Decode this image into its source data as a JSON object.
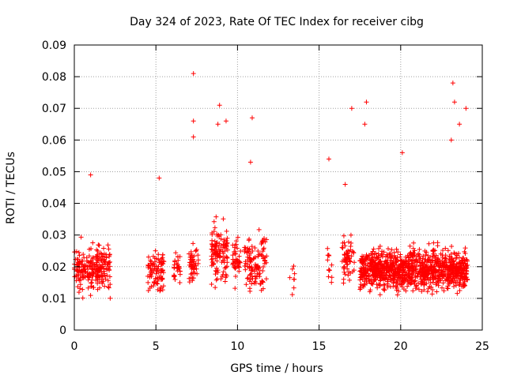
{
  "chart_data": {
    "type": "scatter",
    "title": "Day 324 of 2023, Rate Of TEC Index for receiver cibg",
    "xlabel": "GPS time / hours",
    "ylabel": "ROTI / TECUs",
    "xlim": [
      0,
      25
    ],
    "ylim": [
      0,
      0.09
    ],
    "grid": true,
    "marker": "+",
    "color": "#ff0000",
    "xticks": [
      0,
      5,
      10,
      15,
      20,
      25
    ],
    "yticks": [
      0,
      0.01,
      0.02,
      0.03,
      0.04,
      0.05,
      0.06,
      0.07,
      0.08,
      0.09
    ],
    "xtick_labels": [
      "0",
      "5",
      "10",
      "15",
      "20",
      "25"
    ],
    "ytick_labels": [
      "0",
      "0.01",
      "0.02",
      "0.03",
      "0.04",
      "0.05",
      "0.06",
      "0.07",
      "0.08",
      "0.09"
    ],
    "clusters": [
      {
        "x_range": [
          0.0,
          2.2
        ],
        "y_center": 0.019,
        "y_spread": 0.007,
        "count": 240
      },
      {
        "x_range": [
          4.5,
          5.5
        ],
        "y_center": 0.019,
        "y_spread": 0.006,
        "count": 90
      },
      {
        "x_range": [
          6.1,
          6.5
        ],
        "y_center": 0.02,
        "y_spread": 0.005,
        "count": 30
      },
      {
        "x_range": [
          7.0,
          7.6
        ],
        "y_center": 0.021,
        "y_spread": 0.006,
        "count": 50
      },
      {
        "x_range": [
          8.4,
          9.4
        ],
        "y_center": 0.024,
        "y_spread": 0.008,
        "count": 120
      },
      {
        "x_range": [
          9.7,
          10.2
        ],
        "y_center": 0.022,
        "y_spread": 0.007,
        "count": 40
      },
      {
        "x_range": [
          10.4,
          11.8
        ],
        "y_center": 0.022,
        "y_spread": 0.008,
        "count": 120
      },
      {
        "x_range": [
          13.2,
          13.5
        ],
        "y_center": 0.017,
        "y_spread": 0.006,
        "count": 8
      },
      {
        "x_range": [
          15.5,
          15.8
        ],
        "y_center": 0.02,
        "y_spread": 0.006,
        "count": 12
      },
      {
        "x_range": [
          16.4,
          17.2
        ],
        "y_center": 0.022,
        "y_spread": 0.008,
        "count": 60
      },
      {
        "x_range": [
          17.5,
          24.1
        ],
        "y_center": 0.019,
        "y_spread": 0.006,
        "count": 1100
      }
    ],
    "outliers": [
      {
        "x": 7.3,
        "y": 0.081
      },
      {
        "x": 7.3,
        "y": 0.066
      },
      {
        "x": 7.3,
        "y": 0.061
      },
      {
        "x": 8.9,
        "y": 0.071
      },
      {
        "x": 8.8,
        "y": 0.065
      },
      {
        "x": 9.3,
        "y": 0.066
      },
      {
        "x": 10.9,
        "y": 0.067
      },
      {
        "x": 10.8,
        "y": 0.053
      },
      {
        "x": 17.0,
        "y": 0.07
      },
      {
        "x": 17.9,
        "y": 0.072
      },
      {
        "x": 17.8,
        "y": 0.065
      },
      {
        "x": 23.2,
        "y": 0.078
      },
      {
        "x": 23.3,
        "y": 0.072
      },
      {
        "x": 24.0,
        "y": 0.07
      },
      {
        "x": 23.1,
        "y": 0.06
      },
      {
        "x": 1.0,
        "y": 0.049
      },
      {
        "x": 5.2,
        "y": 0.048
      },
      {
        "x": 23.6,
        "y": 0.065
      },
      {
        "x": 20.1,
        "y": 0.056
      },
      {
        "x": 16.6,
        "y": 0.046
      },
      {
        "x": 15.6,
        "y": 0.054
      }
    ]
  }
}
